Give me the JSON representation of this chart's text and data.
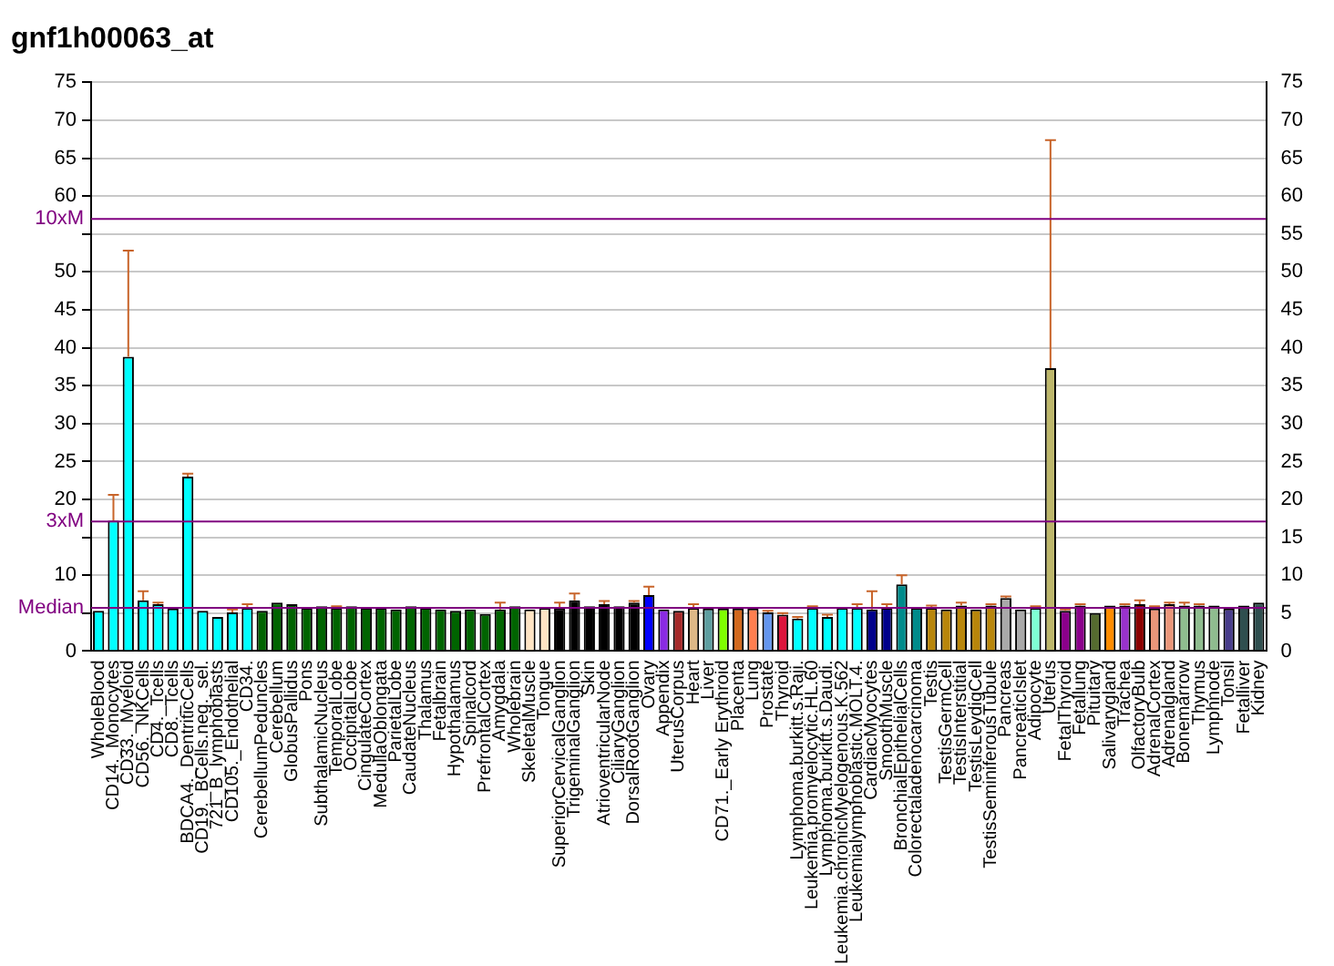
{
  "chart_data": {
    "type": "bar",
    "title": "gnf1h00063_at",
    "categories": [
      "WholeBlood",
      "CD14._Monocytes",
      "CD33._Myeloid",
      "CD56._NKCells",
      "CD4._Tcells",
      "CD8._Tcells",
      "BDCA4._DentriticCells",
      "CD19._BCells.neg._sel.",
      "721_B_lymphoblasts",
      "CD105._Endothelial",
      "CD34.",
      "CerebellumPeduncles",
      "Cerebellum",
      "GlobusPallidus",
      "Pons",
      "SubthalamicNucleus",
      "TemporalLobe",
      "OccipitalLobe",
      "CingulateCortex",
      "MedullaOblongata",
      "ParietalLobe",
      "CaudateNucleus",
      "Thalamus",
      "Fetalbrain",
      "Hypothalamus",
      "Spinalcord",
      "PrefrontalCortex",
      "Amygdala",
      "Wholebrain",
      "SkeletalMuscle",
      "Tongue",
      "SuperiorCervicalGanglion",
      "TrigeminalGanglion",
      "Skin",
      "AtrioventricularNode",
      "CiliaryGanglion",
      "DorsalRootGanglion",
      "Ovary",
      "Appendix",
      "UterusCorpus",
      "Heart",
      "Liver",
      "CD71._Early Erythroid",
      "Placenta",
      "Lung",
      "Prostate",
      "Thyroid",
      "Lymphoma.burkitt.s.Raji.",
      "Leukemia.promyelocytic.HL.60",
      "Lymphoma.burkitt.s.Daudi.",
      "Leukemia.chronicMyelogenous.K.562",
      "Leukemialymphoblastic.MOLT.4.",
      "CardiacMyocytes",
      "SmoothMuscle",
      "BronchialEpithelialCells",
      "Colorectaladenocarcinoma",
      "Testis",
      "TestisGermCell",
      "TestisInterstitial",
      "TestisLeydigCell",
      "TestisSeminiferousTubule",
      "Pancreas",
      "PancreaticIslet",
      "Adipocyte",
      "Uterus",
      "FetalThyroid",
      "Fetallung",
      "Pituitary",
      "Salivarygland",
      "Trachea",
      "OlfactoryBulb",
      "AdrenalCortex",
      "Adrenalgland",
      "Bonemarrow",
      "Thymus",
      "Lymphnode",
      "Tonsil",
      "Fetalliver",
      "Kidney"
    ],
    "values": [
      5.3,
      17.2,
      38.8,
      6.7,
      6.2,
      5.6,
      23.0,
      5.3,
      4.5,
      5.1,
      5.7,
      5.3,
      6.4,
      6.2,
      5.7,
      5.9,
      5.7,
      5.9,
      5.7,
      5.7,
      5.5,
      5.9,
      5.7,
      5.5,
      5.3,
      5.5,
      4.9,
      5.5,
      5.9,
      5.5,
      5.7,
      5.6,
      6.7,
      5.9,
      6.2,
      5.9,
      6.4,
      7.4,
      5.5,
      5.3,
      5.7,
      5.6,
      5.6,
      5.6,
      5.6,
      5.1,
      4.8,
      4.3,
      5.7,
      4.5,
      5.7,
      5.7,
      5.5,
      5.7,
      8.8,
      5.7,
      5.7,
      5.5,
      6.0,
      5.5,
      6.0,
      7.0,
      5.5,
      5.7,
      37.3,
      5.3,
      6.0,
      5.0,
      6.0,
      6.0,
      6.2,
      5.6,
      6.2,
      6.0,
      6.0,
      6.0,
      5.6,
      6.0,
      6.4
    ],
    "errors": [
      null,
      [
        17.2,
        20.6
      ],
      [
        38.8,
        52.8
      ],
      [
        6.7,
        7.9
      ],
      [
        6.2,
        6.4
      ],
      null,
      [
        23.0,
        23.4
      ],
      null,
      null,
      [
        5.1,
        5.5
      ],
      [
        5.7,
        6.2
      ],
      null,
      null,
      null,
      null,
      null,
      [
        5.7,
        5.9
      ],
      null,
      null,
      null,
      null,
      null,
      null,
      null,
      null,
      null,
      null,
      [
        5.5,
        6.4
      ],
      null,
      null,
      null,
      [
        5.6,
        6.4
      ],
      [
        6.7,
        7.6
      ],
      null,
      [
        6.2,
        6.6
      ],
      null,
      [
        6.4,
        6.6
      ],
      [
        7.4,
        8.5
      ],
      null,
      null,
      [
        5.7,
        6.2
      ],
      null,
      null,
      null,
      null,
      [
        5.1,
        5.3
      ],
      [
        4.8,
        5.0
      ],
      [
        4.3,
        4.5
      ],
      [
        5.7,
        5.9
      ],
      [
        4.5,
        4.8
      ],
      null,
      [
        5.7,
        6.2
      ],
      [
        5.5,
        7.9
      ],
      [
        5.7,
        6.2
      ],
      [
        8.8,
        10.0
      ],
      null,
      [
        5.7,
        6.0
      ],
      null,
      [
        6.0,
        6.4
      ],
      null,
      [
        6.0,
        6.2
      ],
      [
        7.0,
        7.2
      ],
      null,
      [
        5.7,
        5.9
      ],
      [
        37.3,
        67.4
      ],
      [
        5.3,
        5.5
      ],
      [
        6.0,
        6.2
      ],
      null,
      null,
      [
        6.0,
        6.2
      ],
      [
        6.2,
        6.7
      ],
      [
        5.6,
        5.9
      ],
      [
        6.2,
        6.4
      ],
      [
        6.0,
        6.4
      ],
      [
        6.0,
        6.2
      ],
      null,
      null,
      null,
      null
    ],
    "colors": [
      "#00ffff",
      "#00ffff",
      "#00ffff",
      "#00ffff",
      "#00ffff",
      "#00ffff",
      "#00ffff",
      "#00ffff",
      "#00ffff",
      "#00ffff",
      "#00ffff",
      "#006400",
      "#006400",
      "#006400",
      "#006400",
      "#006400",
      "#006400",
      "#006400",
      "#006400",
      "#006400",
      "#006400",
      "#006400",
      "#006400",
      "#006400",
      "#006400",
      "#006400",
      "#006400",
      "#006400",
      "#006400",
      "#ffe4c4",
      "#ffe4c4",
      "#000000",
      "#000000",
      "#000000",
      "#000000",
      "#000000",
      "#000000",
      "#0000ff",
      "#8a2be2",
      "#a52a2a",
      "#deb887",
      "#5f9ea0",
      "#7fff00",
      "#d2691e",
      "#ff7f50",
      "#6495ed",
      "#dc143c",
      "#00ffff",
      "#00ffff",
      "#00ffff",
      "#00ffff",
      "#00ffff",
      "#00008b",
      "#00008b",
      "#008b8b",
      "#008b8b",
      "#b8860b",
      "#b8860b",
      "#b8860b",
      "#b8860b",
      "#b8860b",
      "#a9a9a9",
      "#a9a9a9",
      "#7fffd4",
      "#bdb76b",
      "#8b008b",
      "#8b008b",
      "#556b2f",
      "#ff8c00",
      "#9932cc",
      "#8b0000",
      "#e9967a",
      "#e9967a",
      "#8fbc8f",
      "#8fbc8f",
      "#8fbc8f",
      "#483d8b",
      "#2f4f4f",
      "#2f4f4f"
    ],
    "ylim": [
      0,
      75
    ],
    "yticks": [
      0,
      {
        "value": 5,
        "label": null
      },
      10,
      {
        "value": 15,
        "label": null
      },
      20,
      25,
      30,
      35,
      40,
      45,
      50,
      {
        "value": 55,
        "label": null
      },
      60,
      65,
      70,
      75
    ],
    "y2lim": [
      0,
      75
    ],
    "y2ticks": [
      0,
      5,
      10,
      15,
      20,
      25,
      30,
      35,
      40,
      45,
      50,
      55,
      60,
      65,
      70,
      75
    ],
    "ref_lines": [
      {
        "axis": "y",
        "value": 5.7,
        "label": "Median",
        "color": "#800080"
      },
      {
        "axis": "y",
        "value": 17.1,
        "label": "3xM",
        "color": "#800080"
      },
      {
        "axis": "y",
        "value": 57,
        "label": "10xM",
        "color": "#800080"
      }
    ],
    "grid": "y",
    "legend": false
  }
}
